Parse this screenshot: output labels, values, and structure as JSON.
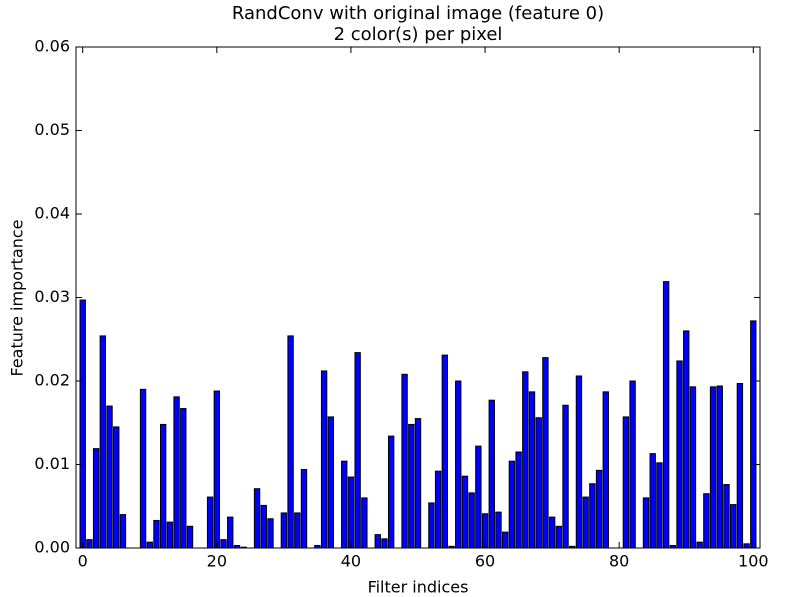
{
  "chart_data": {
    "type": "bar",
    "title": "RandConv with original image (feature 0)",
    "subtitle": "2 color(s) per pixel",
    "xlabel": "Filter indices",
    "ylabel": "Feature importance",
    "color": "#0000ff",
    "x": [
      0,
      1,
      2,
      3,
      4,
      5,
      6,
      7,
      8,
      9,
      10,
      11,
      12,
      13,
      14,
      15,
      16,
      17,
      18,
      19,
      20,
      21,
      22,
      23,
      24,
      25,
      26,
      27,
      28,
      29,
      30,
      31,
      32,
      33,
      34,
      35,
      36,
      37,
      38,
      39,
      40,
      41,
      42,
      43,
      44,
      45,
      46,
      47,
      48,
      49,
      50,
      51,
      52,
      53,
      54,
      55,
      56,
      57,
      58,
      59,
      60,
      61,
      62,
      63,
      64,
      65,
      66,
      67,
      68,
      69,
      70,
      71,
      72,
      73,
      74,
      75,
      76,
      77,
      78,
      79,
      80,
      81,
      82,
      83,
      84,
      85,
      86,
      87,
      88,
      89,
      90,
      91,
      92,
      93,
      94,
      95,
      96,
      97,
      98,
      99,
      100
    ],
    "values": [
      0.0297,
      0.001,
      0.0119,
      0.0254,
      0.017,
      0.0145,
      0.004,
      0,
      0,
      0.019,
      0.0007,
      0.0033,
      0.0148,
      0.0031,
      0.0181,
      0.0167,
      0.0026,
      0,
      0,
      0.0061,
      0.0188,
      0.001,
      0.0037,
      0.0003,
      0.0001,
      0,
      0.0071,
      0.0051,
      0.0035,
      0,
      0.0042,
      0.0254,
      0.0042,
      0.0094,
      0,
      0.0003,
      0.0212,
      0.0157,
      0,
      0.0104,
      0.0085,
      0.0234,
      0.006,
      0,
      0.0016,
      0.0011,
      0.0134,
      0,
      0.0208,
      0.0148,
      0.0155,
      0,
      0.0054,
      0.0092,
      0.0231,
      0.0002,
      0.02,
      0.0086,
      0.0066,
      0.0122,
      0.0041,
      0.0177,
      0.0043,
      0.0019,
      0.0104,
      0.0115,
      0.0211,
      0.0187,
      0.0156,
      0.0228,
      0.0037,
      0.0026,
      0.0171,
      0.0002,
      0.0206,
      0.0061,
      0.0077,
      0.0093,
      0.0187,
      0,
      0,
      0.0157,
      0.02,
      0,
      0.006,
      0.0113,
      0.0102,
      0.0319,
      0.0003,
      0.0224,
      0.026,
      0.0193,
      0.0007,
      0.0065,
      0.0193,
      0.0194,
      0.0076,
      0.0052,
      0.0197,
      0.0005,
      0.0272
    ],
    "xlim": [
      -1,
      101
    ],
    "xticks": [
      0,
      20,
      40,
      60,
      80,
      100
    ],
    "ylim": [
      0,
      0.06
    ],
    "yticks": [
      {
        "value": 0,
        "label": "0.00"
      },
      {
        "value": 0.01,
        "label": "0.01"
      },
      {
        "value": 0.02,
        "label": "0.02"
      },
      {
        "value": 0.03,
        "label": "0.03"
      },
      {
        "value": 0.04,
        "label": "0.04"
      },
      {
        "value": 0.05,
        "label": "0.05"
      },
      {
        "value": 0.06,
        "label": "0.06"
      }
    ]
  }
}
